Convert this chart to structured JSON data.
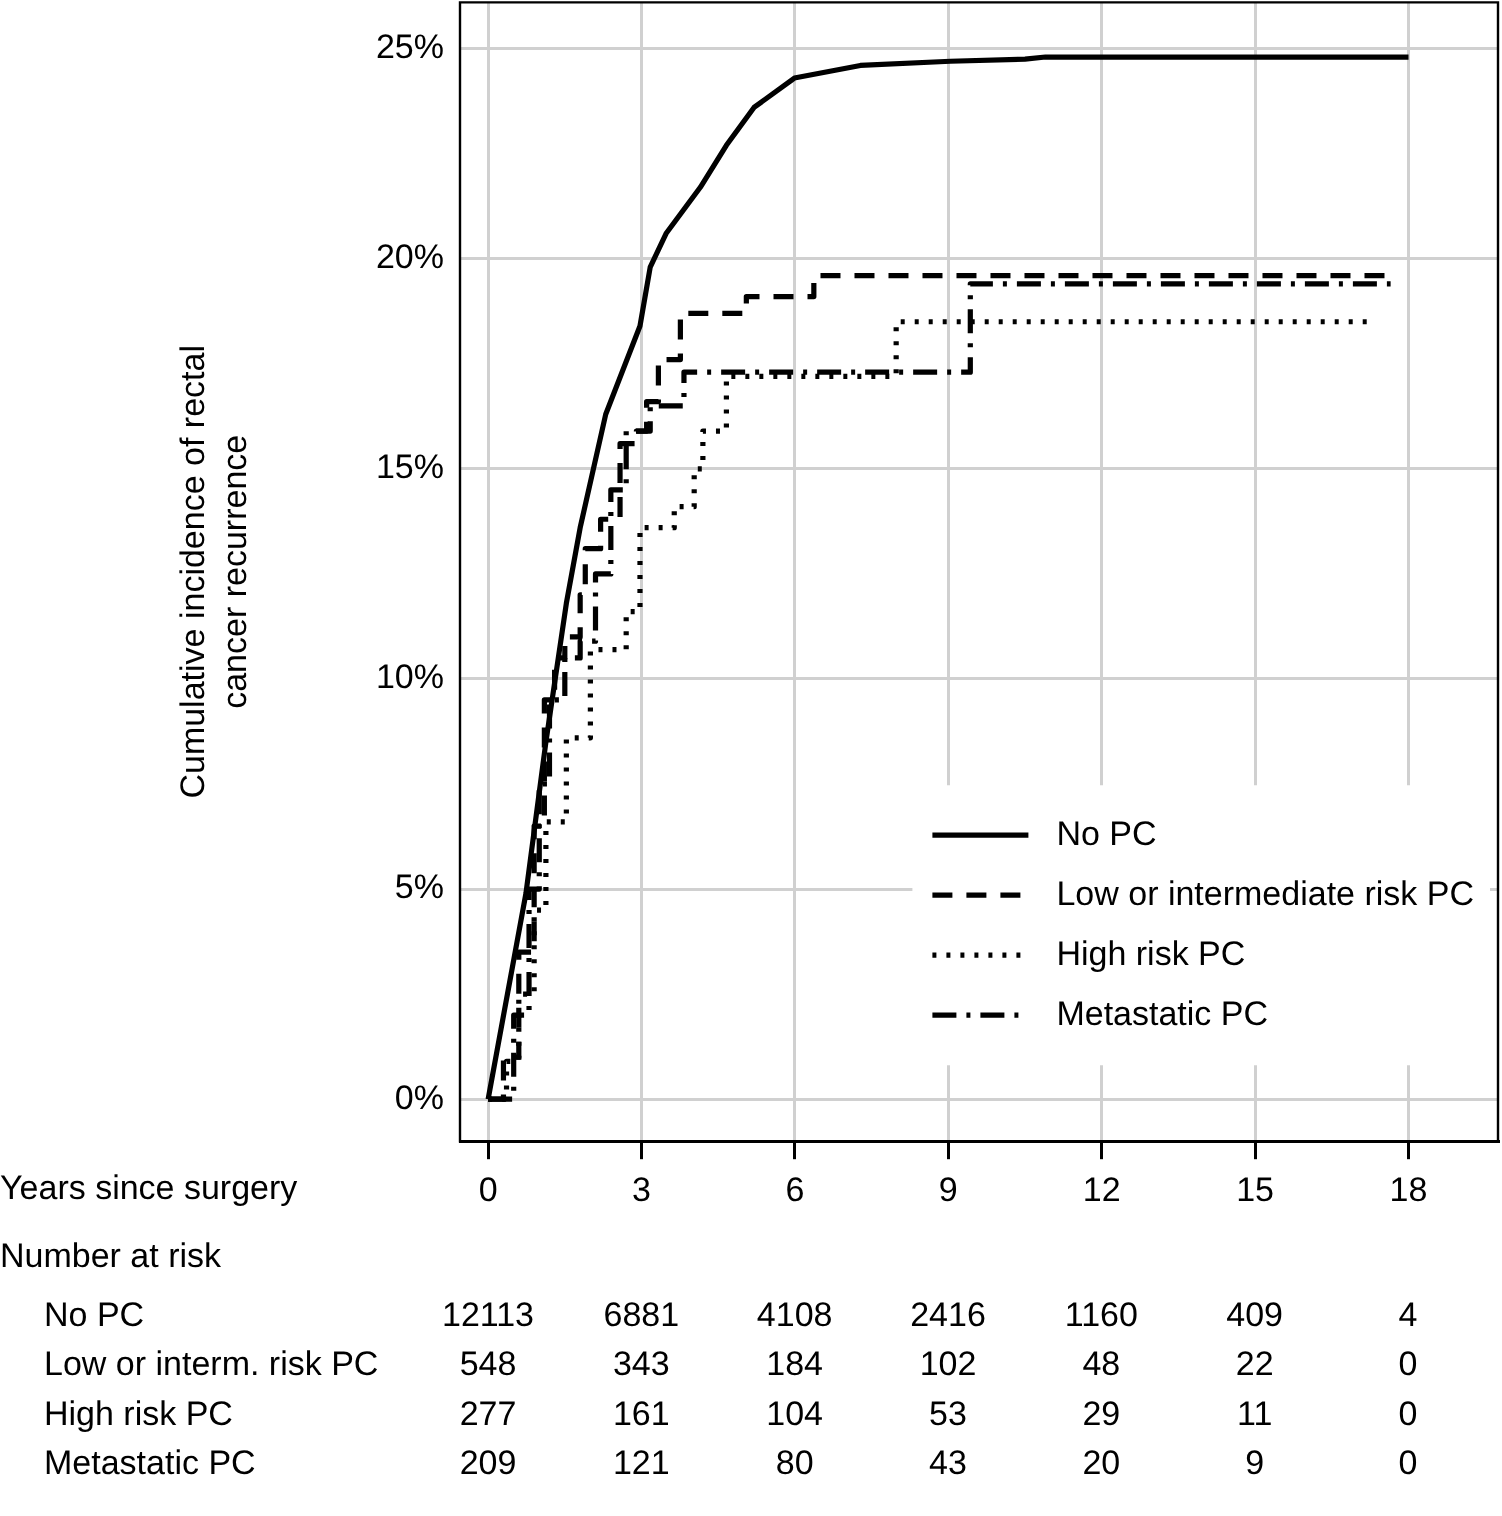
{
  "chart_data": [
    {
      "type": "step",
      "ylabel": "Cumulative incidence of rectal cancer recurrence",
      "xlabel": "Years since surgery",
      "xlim": [
        -0.55,
        19.75
      ],
      "xticks": [
        0,
        3,
        6,
        9,
        12,
        15,
        18
      ],
      "ylim": [
        -1,
        26.1
      ],
      "yticks": [
        {
          "value": 0,
          "label": "0%"
        },
        {
          "value": 5,
          "label": "5%"
        },
        {
          "value": 10,
          "label": "10%"
        },
        {
          "value": 15,
          "label": "15%"
        },
        {
          "value": 20,
          "label": "20%"
        },
        {
          "value": 25,
          "label": "25%"
        }
      ],
      "grid": true,
      "legend": "bottom right",
      "series": [
        {
          "name": "No PC",
          "type": "line",
          "line_style": "solid",
          "color": "#000000",
          "x": [
            0,
            0.74,
            1.13,
            1.53,
            1.8,
            2.3,
            2.97,
            3.17,
            3.48,
            4.15,
            4.66,
            5.2,
            5.99,
            7.28,
            9.04,
            10.5,
            10.9,
            18
          ],
          "values": [
            0,
            4.9,
            8.5,
            11.8,
            13.6,
            16.3,
            18.4,
            19.8,
            20.6,
            21.7,
            22.7,
            23.6,
            24.3,
            24.6,
            24.7,
            24.75,
            24.8,
            24.8
          ]
        },
        {
          "name": "Low or intermediate risk PC",
          "line_style": "dashed",
          "color": "#000000",
          "x": [
            0,
            0.3,
            0.6,
            0.9,
            1.1,
            1.3,
            1.5,
            1.8,
            1.9,
            2.2,
            2.58,
            2.9,
            3.1,
            3.33,
            3.76,
            5.05,
            6.37,
            17.7
          ],
          "values": [
            0,
            1,
            3.5,
            6.5,
            9.5,
            10.5,
            11,
            12,
            13.1,
            13.8,
            15.6,
            15.9,
            16.6,
            17.6,
            18.7,
            19.1,
            19.6,
            19.6
          ]
        },
        {
          "name": "High risk PC",
          "line_style": "dotted",
          "color": "#000000",
          "x": [
            0,
            0.36,
            0.6,
            0.9,
            1.13,
            1.53,
            2.0,
            2.7,
            2.97,
            3.64,
            4.03,
            4.2,
            4.66,
            7.98,
            17.3
          ],
          "values": [
            0,
            0.9,
            2.5,
            4.5,
            6.6,
            8.6,
            10.7,
            11.6,
            13.6,
            14.1,
            15.0,
            15.9,
            17.2,
            18.5,
            18.5
          ]
        },
        {
          "name": "Metastatic PC",
          "line_style": "dashdot",
          "color": "#000000",
          "x": [
            0,
            0.5,
            0.8,
            1.0,
            1.2,
            1.5,
            1.8,
            2.1,
            2.4,
            2.7,
            3.17,
            3.83,
            9.43,
            17.65
          ],
          "values": [
            0,
            2,
            5,
            7.5,
            9.5,
            10.5,
            10.9,
            12.5,
            14.5,
            15.9,
            16.5,
            17.3,
            19.4,
            19.4
          ]
        }
      ]
    },
    {
      "type": "heatmap",
      "title": "Number at risk",
      "categories": [
        null,
        null,
        null,
        null,
        null,
        null,
        null
      ],
      "data_labels": true,
      "y_categories": [
        "No PC",
        "Low or interm. risk PC",
        "High risk PC",
        "Metastatic PC"
      ],
      "cells": [
        [
          12113,
          6881,
          4108,
          2416,
          1160,
          409,
          4
        ],
        [
          548,
          343,
          184,
          102,
          48,
          22,
          0
        ],
        [
          277,
          161,
          104,
          53,
          29,
          11,
          0
        ],
        [
          209,
          121,
          80,
          43,
          20,
          9,
          0
        ]
      ]
    }
  ]
}
